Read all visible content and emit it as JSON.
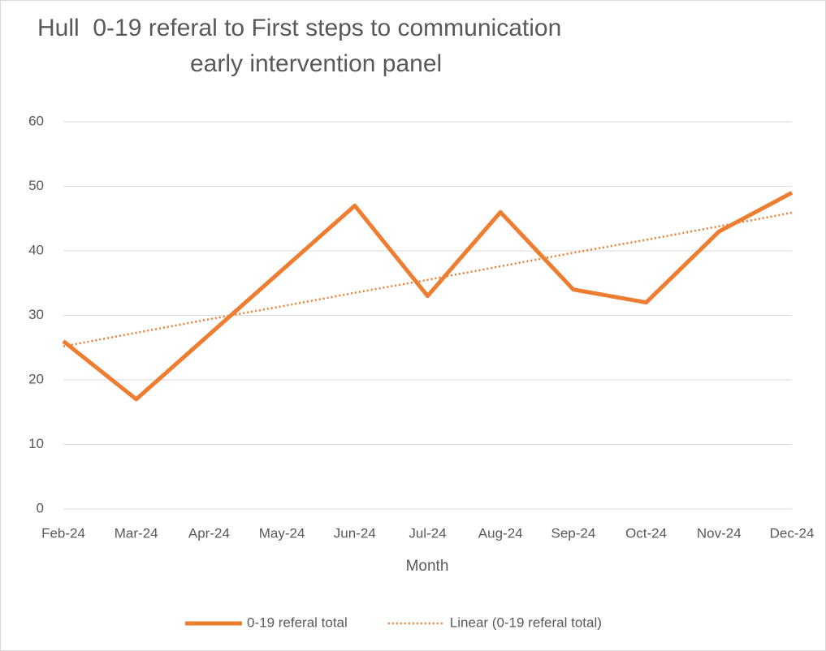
{
  "chart_data": {
    "type": "line",
    "title": [
      "Hull  0-19 referal to First steps to communication",
      "early intervention panel"
    ],
    "x_label": "Month",
    "categories": [
      "Feb-24",
      "Mar-24",
      "Apr-24",
      "May-24",
      "Jun-24",
      "Jul-24",
      "Aug-24",
      "Sep-24",
      "Oct-24",
      "Nov-24",
      "Dec-24"
    ],
    "series": [
      {
        "name": "0-19 referal total",
        "color": "#ed7d31",
        "style": "solid",
        "values": [
          26,
          17,
          27,
          37,
          47,
          33,
          46,
          34,
          32,
          43,
          49
        ]
      },
      {
        "name": "Linear (0-19 referal total)",
        "color": "#ed7d31",
        "style": "dotted",
        "values": [
          25.2,
          27.3,
          29.4,
          31.4,
          33.5,
          35.5,
          37.6,
          39.7,
          41.7,
          43.8,
          45.9
        ]
      }
    ],
    "ylim": [
      0,
      60
    ],
    "yticks": [
      0,
      10,
      20,
      30,
      40,
      50,
      60
    ],
    "grid": true,
    "legend": "bottom"
  }
}
